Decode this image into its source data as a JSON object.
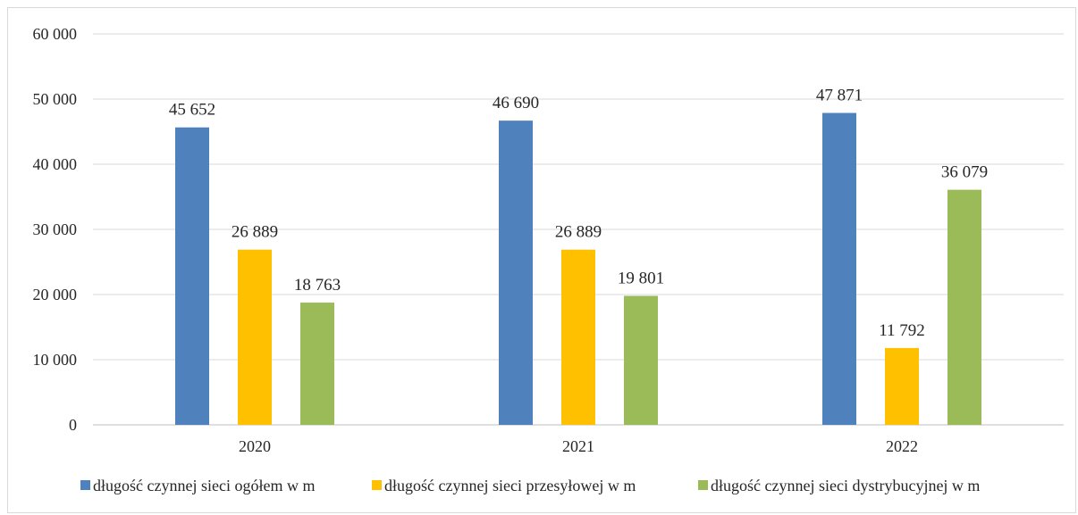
{
  "chart_data": {
    "type": "bar",
    "categories": [
      "2020",
      "2021",
      "2022"
    ],
    "series": [
      {
        "name": "długość czynnej sieci ogółem w m",
        "color": "#4f81bd",
        "values": [
          45652,
          46690,
          47871
        ],
        "labels": [
          "45 652",
          "46 690",
          "47 871"
        ]
      },
      {
        "name": "długość czynnej sieci przesyłowej w m",
        "color": "#ffc000",
        "values": [
          26889,
          26889,
          11792
        ],
        "labels": [
          "26 889",
          "26 889",
          "11 792"
        ]
      },
      {
        "name": "długość czynnej sieci dystrybucyjnej w m",
        "color": "#9bbb59",
        "values": [
          18763,
          19801,
          36079
        ],
        "labels": [
          "18 763",
          "19 801",
          "36 079"
        ]
      }
    ],
    "yticks": [
      0,
      10000,
      20000,
      30000,
      40000,
      50000,
      60000
    ],
    "ytick_labels": [
      "0",
      "10 000",
      "20 000",
      "30 000",
      "40 000",
      "50 000",
      "60 000"
    ],
    "ylim": [
      0,
      60000
    ],
    "grid": true,
    "legend": "bottom",
    "title": "",
    "xlabel": "",
    "ylabel": ""
  }
}
